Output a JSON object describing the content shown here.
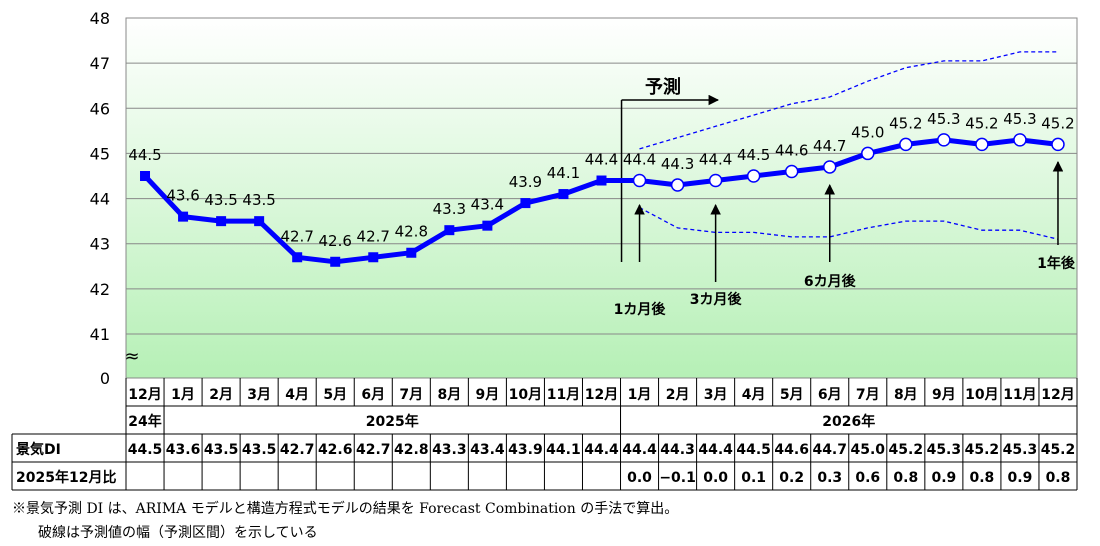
{
  "chart_data": {
    "type": "line",
    "ylim": [
      41,
      48
    ],
    "y_break_label": "0",
    "y_break_symbol": "≈",
    "yticks": [
      "41",
      "42",
      "43",
      "44",
      "45",
      "46",
      "47",
      "48"
    ],
    "months": [
      "12月",
      "1月",
      "2月",
      "3月",
      "4月",
      "5月",
      "6月",
      "7月",
      "8月",
      "9月",
      "10月",
      "11月",
      "12月",
      "1月",
      "2月",
      "3月",
      "4月",
      "5月",
      "6月",
      "7月",
      "8月",
      "9月",
      "10月",
      "11月",
      "12月"
    ],
    "year_groups": [
      {
        "label": "24年",
        "start": 0,
        "end": 0
      },
      {
        "label": "2025年",
        "start": 1,
        "end": 12
      },
      {
        "label": "2026年",
        "start": 13,
        "end": 24
      }
    ],
    "series": [
      {
        "name": "景気DI",
        "values": [
          44.5,
          43.6,
          43.5,
          43.5,
          42.7,
          42.6,
          42.7,
          42.8,
          43.3,
          43.4,
          43.9,
          44.1,
          44.4,
          44.4,
          44.3,
          44.4,
          44.5,
          44.6,
          44.7,
          45.0,
          45.2,
          45.3,
          45.2,
          45.3,
          45.2
        ],
        "labels": [
          "44.5",
          "43.6",
          "43.5",
          "43.5",
          "42.7",
          "42.6",
          "42.7",
          "42.8",
          "43.3",
          "43.4",
          "43.9",
          "44.1",
          "44.4",
          "44.4",
          "44.3",
          "44.4",
          "44.5",
          "44.6",
          "44.7",
          "45.0",
          "45.2",
          "45.3",
          "45.2",
          "45.3",
          "45.2"
        ],
        "forecast_start": 13,
        "color": "#0000ff"
      }
    ],
    "upper_band": [
      45.1,
      45.35,
      45.6,
      45.85,
      46.1,
      46.25,
      46.6,
      46.9,
      47.05,
      47.05,
      47.25,
      47.25
    ],
    "lower_band": [
      43.8,
      43.35,
      43.25,
      43.25,
      43.15,
      43.15,
      43.35,
      43.5,
      43.5,
      43.3,
      43.3,
      43.1
    ],
    "annotations": {
      "forecast": "予測",
      "m1": "1カ月後",
      "m3": "3カ月後",
      "m6": "6カ月後",
      "y1": "1年後"
    },
    "table": {
      "row1_label": "景気DI",
      "row1": [
        "44.5",
        "43.6",
        "43.5",
        "43.5",
        "42.7",
        "42.6",
        "42.7",
        "42.8",
        "43.3",
        "43.4",
        "43.9",
        "44.1",
        "44.4",
        "44.4",
        "44.3",
        "44.4",
        "44.5",
        "44.6",
        "44.7",
        "45.0",
        "45.2",
        "45.3",
        "45.2",
        "45.3",
        "45.2"
      ],
      "row2_label": "2025年12月比",
      "row2": [
        "",
        "",
        "",
        "",
        "",
        "",
        "",
        "",
        "",
        "",
        "",
        "",
        "",
        "0.0",
        "−0.1",
        "0.0",
        "0.1",
        "0.2",
        "0.3",
        "0.6",
        "0.8",
        "0.9",
        "0.8",
        "0.9",
        "0.8"
      ]
    }
  },
  "notes": {
    "line1": "※景気予測 DI は、ARIMA モデルと構造方程式モデルの結果を Forecast Combination の手法で算出。",
    "line2": "破線は予測値の幅（予測区間）を示している"
  }
}
